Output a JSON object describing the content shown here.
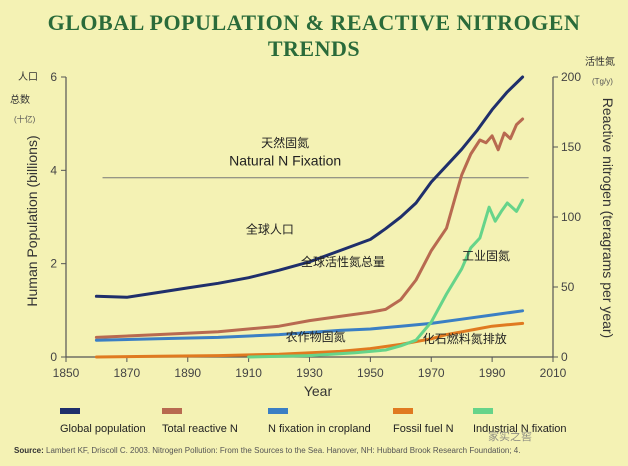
{
  "title": "GLOBAL POPULATION & REACTIVE NITROGEN TRENDS",
  "source": {
    "label": "Source:",
    "text": " Lambert KF, Driscoll C. 2003. Nitrogen Pollution: From the Sources to the Sea. Hanover, NH: Hubbard Brook Research Foundation; 4."
  },
  "watermark": "家实之窖",
  "chart_data": {
    "type": "line",
    "title": "GLOBAL POPULATION & REACTIVE NITROGEN TRENDS",
    "xlabel": "Year",
    "ylabel_left": "Human Population (billions)",
    "ylabel_left_cn": [
      "人口",
      "总数",
      "(十亿)"
    ],
    "ylabel_right": "Reactive nitrogen (teragrams per year)",
    "ylabel_right_cn": [
      "活性氮",
      "(Tg/y)"
    ],
    "xlim": [
      1850,
      2010
    ],
    "ylim_left": [
      0,
      6
    ],
    "ylim_right": [
      0,
      200
    ],
    "x_ticks": [
      1850,
      1870,
      1890,
      1910,
      1930,
      1950,
      1970,
      1990,
      2010
    ],
    "y_left_ticks": [
      0,
      2,
      4,
      6
    ],
    "y_right_ticks": [
      0,
      50,
      100,
      150,
      200
    ],
    "grid": false,
    "legend_position": "bottom",
    "reference_line": {
      "value": 128,
      "axis": "right"
    },
    "annotations": [
      {
        "text": "天然固氮",
        "x": 1922,
        "y": 4.5
      },
      {
        "text": "Natural N Fixation",
        "x": 1922,
        "y": 4.1
      },
      {
        "text": "全球人口",
        "x": 1917,
        "y": 2.65
      },
      {
        "text": "全球活性氮总量",
        "x": 1941,
        "y": 1.95
      },
      {
        "text": "工业固氮",
        "x": 1988,
        "y": 2.08
      },
      {
        "text": "农作物固氮",
        "x": 1932,
        "y": 0.34
      },
      {
        "text": "化石燃料氮排放",
        "x": 1981,
        "y": 0.3
      }
    ],
    "series": [
      {
        "name": "Global population",
        "axis": "left",
        "color": "#1f2f6b",
        "x": [
          1860,
          1870,
          1880,
          1890,
          1900,
          1910,
          1920,
          1930,
          1940,
          1950,
          1955,
          1960,
          1965,
          1970,
          1975,
          1980,
          1985,
          1990,
          1995,
          2000
        ],
        "y": [
          1.3,
          1.28,
          1.38,
          1.48,
          1.58,
          1.7,
          1.86,
          2.04,
          2.28,
          2.52,
          2.75,
          3.0,
          3.3,
          3.75,
          4.1,
          4.45,
          4.85,
          5.3,
          5.68,
          6.0
        ]
      },
      {
        "name": "Total reactive N",
        "axis": "right",
        "color": "#b86a50",
        "x": [
          1860,
          1880,
          1900,
          1920,
          1930,
          1940,
          1950,
          1955,
          1960,
          1965,
          1970,
          1975,
          1978,
          1980,
          1983,
          1986,
          1988,
          1990,
          1992,
          1994,
          1996,
          1998,
          2000
        ],
        "y": [
          14,
          16,
          18,
          22,
          26,
          29,
          32,
          34,
          41,
          55,
          76,
          92,
          115,
          130,
          145,
          155,
          153,
          158,
          148,
          160,
          156,
          166,
          170
        ]
      },
      {
        "name": "N fixation in cropland",
        "axis": "right",
        "color": "#3b7fc4",
        "x": [
          1860,
          1880,
          1900,
          1920,
          1940,
          1950,
          1960,
          1970,
          1980,
          1990,
          2000
        ],
        "y": [
          12,
          13,
          14,
          16,
          19,
          20,
          22,
          24,
          27,
          30,
          33
        ]
      },
      {
        "name": "Fossil fuel N",
        "axis": "right",
        "color": "#e07a20",
        "x": [
          1860,
          1880,
          1900,
          1920,
          1940,
          1950,
          1960,
          1970,
          1975,
          1980,
          1985,
          1990,
          1995,
          2000
        ],
        "y": [
          0,
          0.5,
          1,
          2,
          4,
          6,
          9,
          13,
          16,
          18,
          20,
          22,
          23,
          24
        ]
      },
      {
        "name": "Industrial N fixation",
        "axis": "right",
        "color": "#66d48a",
        "x": [
          1910,
          1930,
          1945,
          1955,
          1960,
          1965,
          1970,
          1975,
          1980,
          1983,
          1986,
          1989,
          1991,
          1993,
          1995,
          1998,
          2000
        ],
        "y": [
          0,
          1,
          3,
          5,
          8,
          12,
          25,
          45,
          63,
          78,
          85,
          107,
          97,
          104,
          110,
          104,
          112
        ]
      }
    ]
  }
}
